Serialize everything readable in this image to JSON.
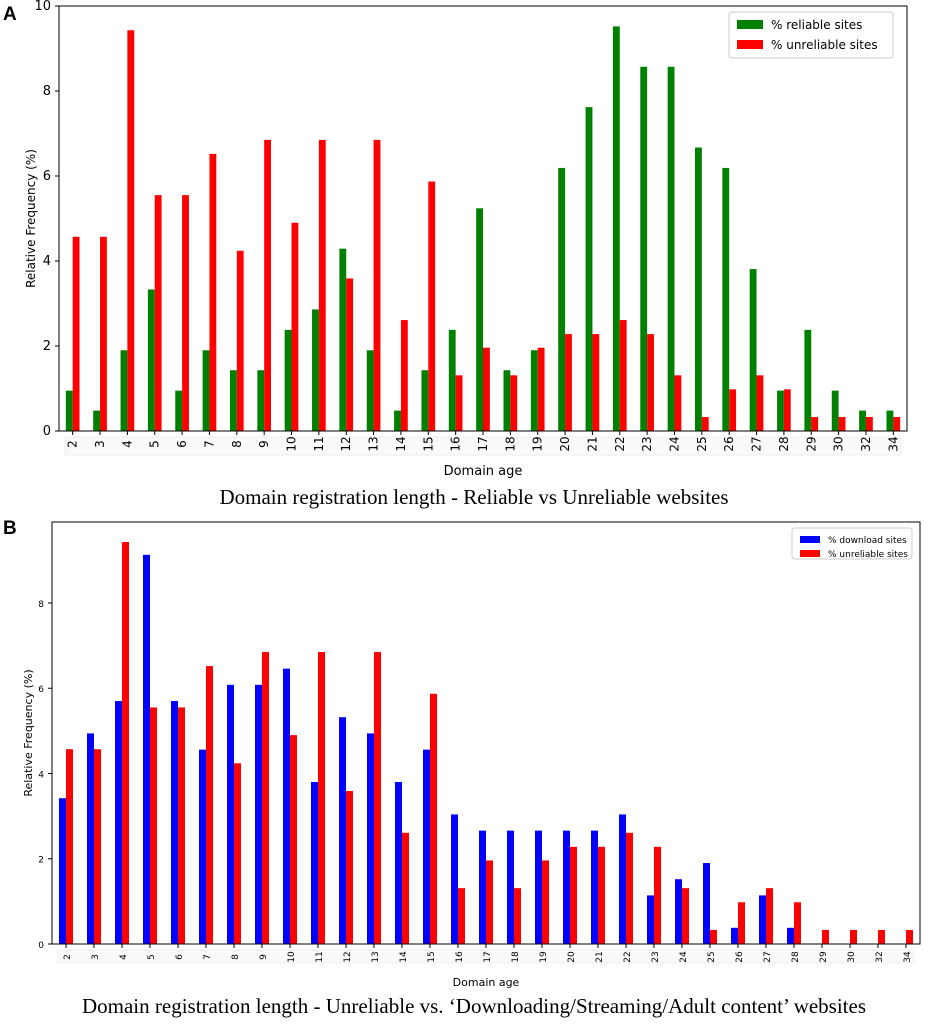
{
  "panels": [
    {
      "letter": "A",
      "caption": "Domain registration length - Reliable vs Unreliable websites",
      "chart_data": {
        "type": "bar",
        "title": "",
        "xlabel": "Domain age",
        "ylabel": "Relative Frequency (%)",
        "ylim": [
          0,
          10
        ],
        "yticks": [
          0,
          2,
          4,
          6,
          8,
          10
        ],
        "categories": [
          "2",
          "3",
          "4",
          "5",
          "6",
          "7",
          "8",
          "9",
          "10",
          "11",
          "12",
          "13",
          "14",
          "15",
          "16",
          "17",
          "18",
          "19",
          "20",
          "21",
          "22",
          "23",
          "24",
          "25",
          "26",
          "27",
          "28",
          "29",
          "30",
          "32",
          "34"
        ],
        "series": [
          {
            "name": "% reliable sites",
            "color": "#008000",
            "values": [
              0.95,
              0.48,
              1.9,
              3.33,
              0.95,
              1.9,
              1.43,
              1.43,
              2.38,
              2.86,
              4.29,
              1.9,
              0.48,
              1.43,
              2.38,
              5.24,
              1.43,
              1.9,
              6.19,
              7.62,
              9.52,
              8.57,
              8.57,
              6.67,
              6.19,
              3.81,
              0.95,
              2.38,
              0.95,
              0.48,
              0.48
            ]
          },
          {
            "name": "% unreliable sites",
            "color": "#ff0000",
            "values": [
              4.57,
              4.57,
              9.43,
              5.55,
              5.55,
              6.52,
              4.24,
              6.85,
              4.9,
              6.85,
              3.59,
              6.85,
              2.61,
              5.87,
              1.31,
              1.96,
              1.31,
              1.96,
              2.28,
              2.28,
              2.61,
              2.28,
              1.31,
              0.33,
              0.98,
              1.31,
              0.98,
              0.33,
              0.33,
              0.33,
              0.33
            ]
          }
        ]
      }
    },
    {
      "letter": "B",
      "caption": "Domain registration length - Unreliable vs. ‘Downloading/Streaming/Adult content’ websites",
      "chart_data": {
        "type": "bar",
        "title": "",
        "xlabel": "Domain age",
        "ylabel": "Relative Frequency (%)",
        "ylim": [
          0,
          9.9
        ],
        "yticks": [
          0,
          2,
          4,
          6,
          8
        ],
        "categories": [
          "2",
          "3",
          "4",
          "5",
          "6",
          "7",
          "8",
          "9",
          "10",
          "11",
          "12",
          "13",
          "14",
          "15",
          "16",
          "17",
          "18",
          "19",
          "20",
          "21",
          "22",
          "23",
          "24",
          "25",
          "26",
          "27",
          "28",
          "29",
          "30",
          "32",
          "34"
        ],
        "series": [
          {
            "name": "% download sites",
            "color": "#0000ff",
            "values": [
              3.42,
              4.94,
              5.7,
              9.13,
              5.7,
              4.56,
              6.08,
              6.08,
              6.46,
              3.8,
              5.32,
              4.94,
              3.8,
              4.56,
              3.04,
              2.66,
              2.66,
              2.66,
              2.66,
              2.66,
              3.04,
              1.14,
              1.52,
              1.9,
              0.38,
              1.14,
              0.38,
              0,
              0,
              0,
              0
            ]
          },
          {
            "name": "% unreliable sites",
            "color": "#ff0000",
            "values": [
              4.57,
              4.57,
              9.43,
              5.55,
              5.55,
              6.52,
              4.24,
              6.85,
              4.9,
              6.85,
              3.59,
              6.85,
              2.61,
              5.87,
              1.31,
              1.96,
              1.31,
              1.96,
              2.28,
              2.28,
              2.61,
              2.28,
              1.31,
              0.33,
              0.98,
              1.31,
              0.98,
              0.33,
              0.33,
              0.33,
              0.33
            ]
          }
        ]
      }
    }
  ]
}
